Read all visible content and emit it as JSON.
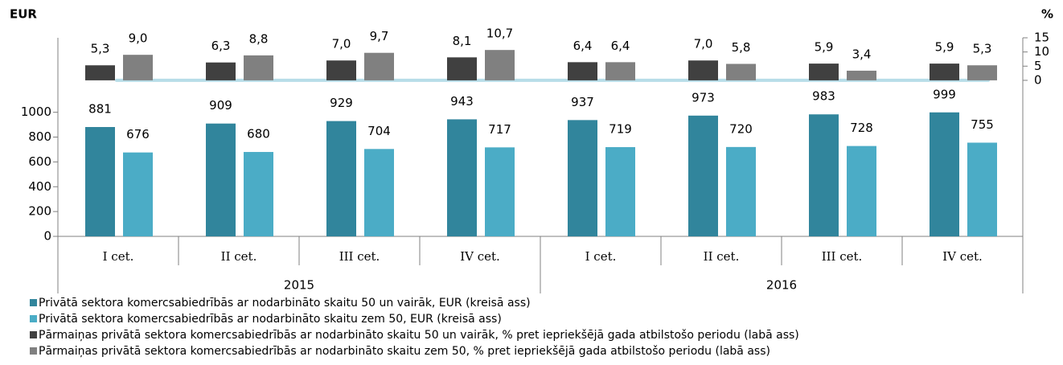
{
  "chart_data": {
    "type": "bar",
    "y_label": "EUR",
    "y2_label": "%",
    "categories": [
      "I cet.",
      "II cet.",
      "III cet.",
      "IV cet.",
      "I cet.",
      "II cet.",
      "III cet.",
      "IV cet."
    ],
    "x_groups": [
      "2015",
      "2016"
    ],
    "ylim": [
      0,
      1600
    ],
    "yticks": [
      0,
      200,
      400,
      600,
      800,
      1000
    ],
    "y2lim": [
      -55,
      15
    ],
    "y2ticks": [
      0,
      5,
      10,
      15
    ],
    "series": [
      {
        "name": "Privātā sektora komercsabiedrībās ar nodarbināto skaitu 50 un vairāk, EUR (kreisā ass)",
        "color": "#31859c",
        "values": [
          881,
          909,
          929,
          943,
          937,
          973,
          983,
          999
        ]
      },
      {
        "name": "Privātā sektora komercsabiedrībās ar nodarbināto skaitu zem 50, EUR (kreisā ass)",
        "color": "#4bacc6",
        "values": [
          676,
          680,
          704,
          717,
          719,
          720,
          728,
          755
        ]
      },
      {
        "name": "Pārmaiņas privātā sektora komercsabiedrībās ar nodarbināto skaitu 50 un vairāk, % pret iepriekšējā gada atbilstošo periodu (labā ass)",
        "color": "#404040",
        "axis": "y2",
        "values": [
          5.3,
          6.3,
          7.0,
          8.1,
          6.4,
          7.0,
          5.9,
          5.9
        ],
        "value_labels": [
          "5,3",
          "6,3",
          "7,0",
          "8,1",
          "6,4",
          "7,0",
          "5,9",
          "5,9"
        ]
      },
      {
        "name": "Pārmaiņas privātā sektora komercsabiedrībās ar nodarbināto skaitu zem 50, % pret iepriekšējā gada atbilstošo periodu (labā ass)",
        "color": "#808080",
        "axis": "y2",
        "values": [
          9.0,
          8.8,
          9.7,
          10.7,
          6.4,
          5.8,
          3.4,
          5.3
        ],
        "value_labels": [
          "9,0",
          "8,8",
          "9,7",
          "10,7",
          "6,4",
          "5,8",
          "3,4",
          "5,3"
        ]
      }
    ]
  }
}
